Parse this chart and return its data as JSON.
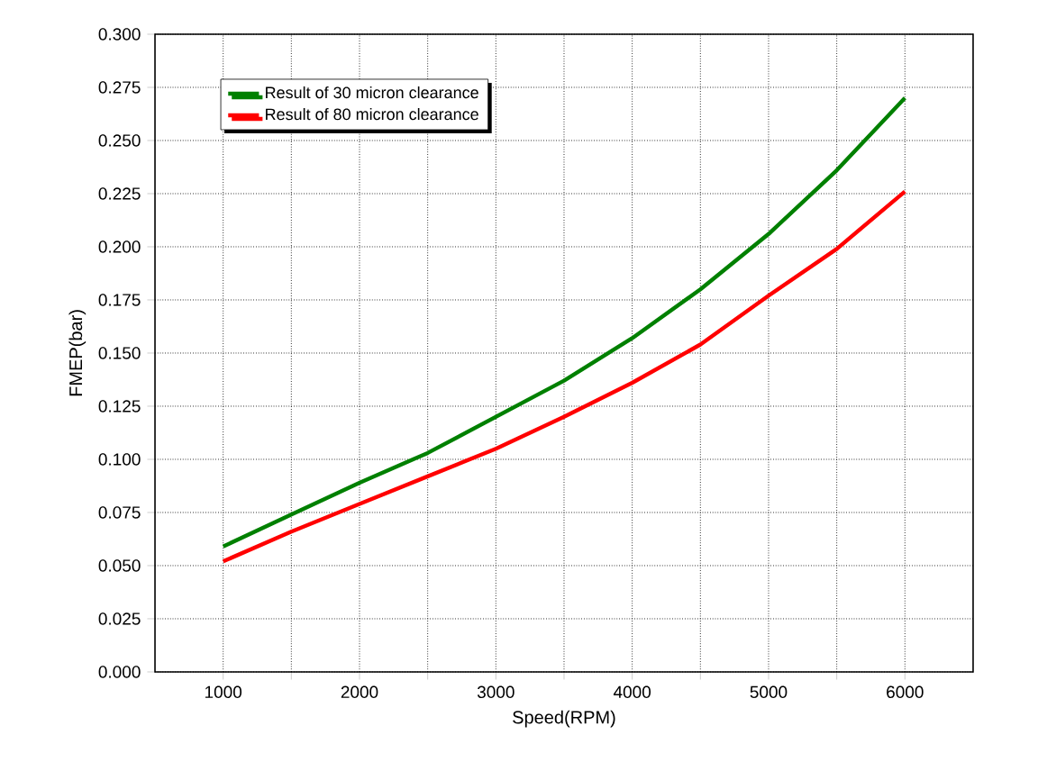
{
  "chart_data": {
    "type": "line",
    "xlabel": "Speed(RPM)",
    "ylabel": "FMEP(bar)",
    "x": [
      1000,
      1500,
      2000,
      2500,
      3000,
      3500,
      4000,
      4500,
      5000,
      5500,
      6000
    ],
    "series": [
      {
        "name": "Result of 30 micron clearance",
        "color": "#008000",
        "values": [
          0.059,
          0.074,
          0.089,
          0.103,
          0.12,
          0.137,
          0.157,
          0.18,
          0.206,
          0.236,
          0.27
        ]
      },
      {
        "name": "Result of 80 micron clearance",
        "color": "#ff0000",
        "values": [
          0.052,
          0.066,
          0.079,
          0.092,
          0.105,
          0.12,
          0.136,
          0.154,
          0.177,
          0.199,
          0.226
        ]
      }
    ],
    "xlim": [
      500,
      6500
    ],
    "ylim": [
      0,
      0.3
    ],
    "xticks": [
      1000,
      {
        "value": 1500,
        "label": null
      },
      2000,
      {
        "value": 2500,
        "label": null
      },
      3000,
      {
        "value": 3500,
        "label": null
      },
      4000,
      {
        "value": 4500,
        "label": null
      },
      5000,
      {
        "value": 5500,
        "label": null
      },
      6000
    ],
    "yticks": [
      {
        "value": 0,
        "label": "0.000"
      },
      {
        "value": 0.025,
        "label": "0.025"
      },
      {
        "value": 0.05,
        "label": "0.050"
      },
      {
        "value": 0.075,
        "label": "0.075"
      },
      {
        "value": 0.1,
        "label": "0.100"
      },
      {
        "value": 0.125,
        "label": "0.125"
      },
      {
        "value": 0.15,
        "label": "0.150"
      },
      {
        "value": 0.175,
        "label": "0.175"
      },
      {
        "value": 0.2,
        "label": "0.200"
      },
      {
        "value": 0.225,
        "label": "0.225"
      },
      {
        "value": 0.25,
        "label": "0.250"
      },
      {
        "value": 0.275,
        "label": "0.275"
      },
      {
        "value": 0.3,
        "label": "0.300"
      }
    ],
    "grid": true,
    "legend": "top left",
    "line_style": "solid",
    "marker": "none"
  }
}
